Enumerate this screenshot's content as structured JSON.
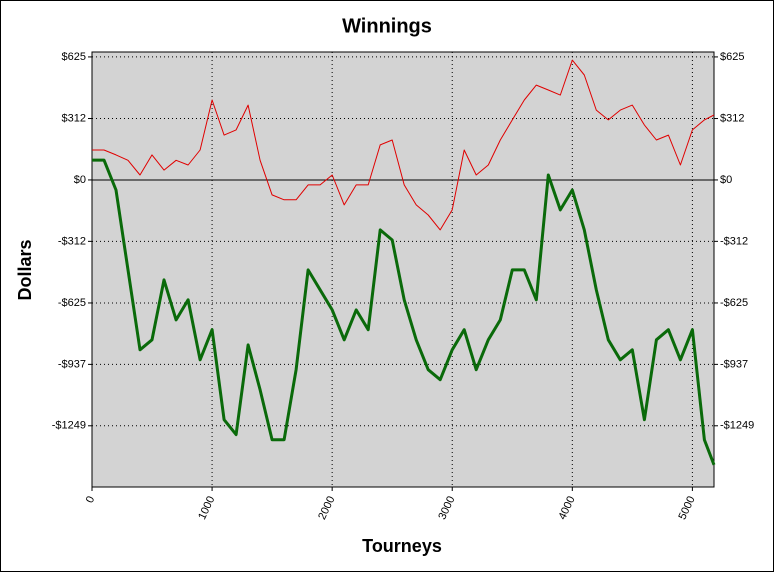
{
  "chart_data": {
    "type": "line",
    "title": "Winnings",
    "xlabel": "Tourneys",
    "ylabel": "Dollars",
    "x": [
      0,
      100,
      200,
      300,
      400,
      500,
      600,
      700,
      800,
      900,
      1000,
      1100,
      1200,
      1300,
      1400,
      1500,
      1600,
      1700,
      1800,
      1900,
      2000,
      2100,
      2200,
      2300,
      2400,
      2500,
      2600,
      2700,
      2800,
      2900,
      3000,
      3100,
      3200,
      3300,
      3400,
      3500,
      3600,
      3700,
      3800,
      3900,
      4000,
      4100,
      4200,
      4300,
      4400,
      4500,
      4600,
      4700,
      4800,
      4900,
      5000,
      5100,
      5180
    ],
    "series": [
      {
        "color": "#e00000",
        "width": 1,
        "values": [
          152,
          152,
          127,
          100,
          25,
          127,
          50,
          100,
          76,
          152,
          406,
          228,
          254,
          380,
          100,
          -76,
          -101,
          -101,
          -25,
          -25,
          25,
          -127,
          -25,
          -25,
          178,
          203,
          -25,
          -127,
          -178,
          -254,
          -152,
          152,
          25,
          76,
          203,
          305,
          406,
          482,
          457,
          431,
          609,
          533,
          355,
          305,
          355,
          380,
          279,
          203,
          228,
          76,
          254,
          305,
          330
        ]
      },
      {
        "color": "#0a6a0a",
        "width": 3,
        "values": [
          101,
          101,
          -51,
          -457,
          -863,
          -812,
          -508,
          -711,
          -609,
          -914,
          -761,
          -1218,
          -1294,
          -838,
          -1066,
          -1320,
          -1320,
          -964,
          -457,
          -558,
          -660,
          -812,
          -660,
          -761,
          -254,
          -305,
          -609,
          -812,
          -964,
          -1015,
          -863,
          -761,
          -964,
          -812,
          -711,
          -457,
          -457,
          -609,
          25,
          -152,
          -51,
          -254,
          -558,
          -812,
          -914,
          -863,
          -1218,
          -812,
          -761,
          -914,
          -761,
          -1320,
          -1447
        ]
      }
    ],
    "xlim": [
      0,
      5180
    ],
    "ylim": [
      -1560,
      650
    ],
    "xticks": [
      0,
      1000,
      2000,
      3000,
      4000,
      5000
    ],
    "yticks": [
      {
        "value": 625,
        "label": "$625"
      },
      {
        "value": 312,
        "label": "$312"
      },
      {
        "value": 0,
        "label": "$0"
      },
      {
        "value": -312,
        "label": "-$312"
      },
      {
        "value": -625,
        "label": "-$625"
      },
      {
        "value": -937,
        "label": "-$937"
      },
      {
        "value": -1249,
        "label": "-$1249"
      }
    ],
    "grid": true
  }
}
